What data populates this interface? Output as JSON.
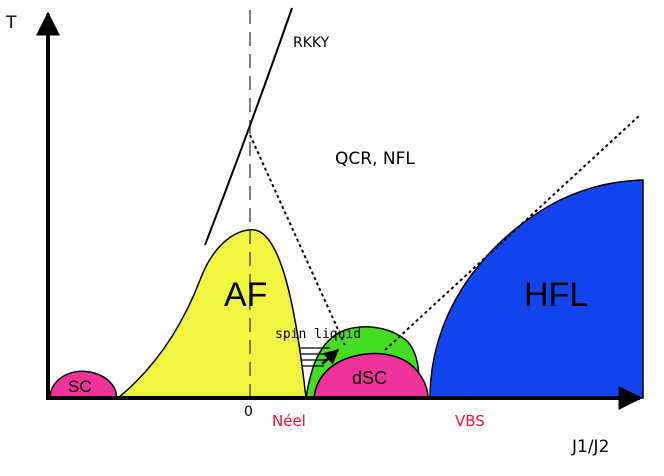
{
  "axes": {
    "y_label": "T",
    "x_label": "J1/J2",
    "x_tick_zero": "0"
  },
  "regions": {
    "sc": "SC",
    "af": "AF",
    "dsc": "dSC",
    "hfl": "HFL"
  },
  "annotations": {
    "rkky": "RKKY",
    "qcr": "QCR, NFL",
    "spin_liquid": "spin liquid",
    "neel": "Néel",
    "vbs": "VBS"
  },
  "colors": {
    "sc_region": "#ee3399",
    "af_region": "#f0f540",
    "dsc_region": "#ee3399",
    "spin_liquid_region": "#44dd22",
    "hfl_region": "#1144ee",
    "transition_labels": "#ee1133"
  }
}
